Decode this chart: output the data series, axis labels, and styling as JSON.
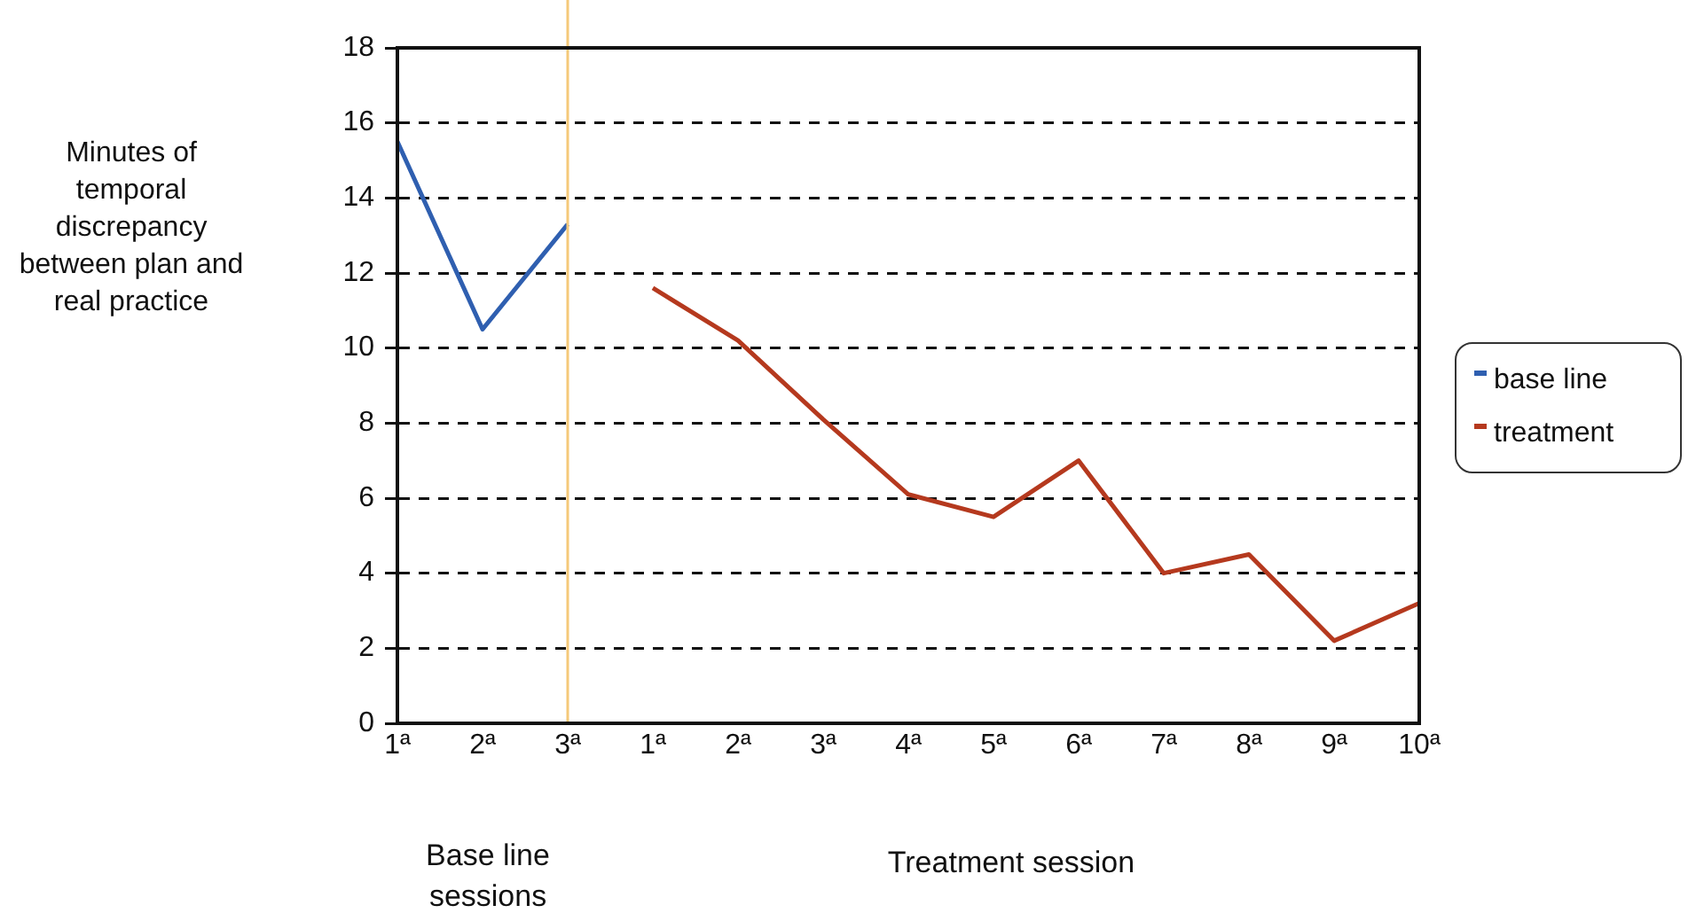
{
  "chart_data": {
    "type": "line",
    "ylabel": "Minutes of temporal discrepancy between plan and real practice",
    "xlabel": "Treatment session",
    "annotations": [
      "Base line sessions"
    ],
    "ylim": [
      0,
      18
    ],
    "yticks": [
      0,
      2,
      4,
      6,
      8,
      10,
      12,
      14,
      16,
      18
    ],
    "categories": [
      "1ª",
      "2ª",
      "3ª",
      "1ª",
      "2ª",
      "3ª",
      "4ª",
      "5ª",
      "6ª",
      "7ª",
      "8ª",
      "9ª",
      "10ª"
    ],
    "series": [
      {
        "name": "base line",
        "color": "#2f5fb0",
        "values": [
          15.5,
          10.5,
          13.3,
          null,
          null,
          null,
          null,
          null,
          null,
          null,
          null,
          null,
          null
        ]
      },
      {
        "name": "treatment",
        "color": "#b5391e",
        "values": [
          null,
          null,
          null,
          11.6,
          10.2,
          8.1,
          6.1,
          5.5,
          7.0,
          4.0,
          4.5,
          2.2,
          3.2
        ]
      }
    ],
    "ref_lines": [
      {
        "axis": "x",
        "value": "3ª",
        "color": "#f5c97a"
      }
    ],
    "grid": "y",
    "legend": "right",
    "marker": "none",
    "line_style": "solid"
  }
}
